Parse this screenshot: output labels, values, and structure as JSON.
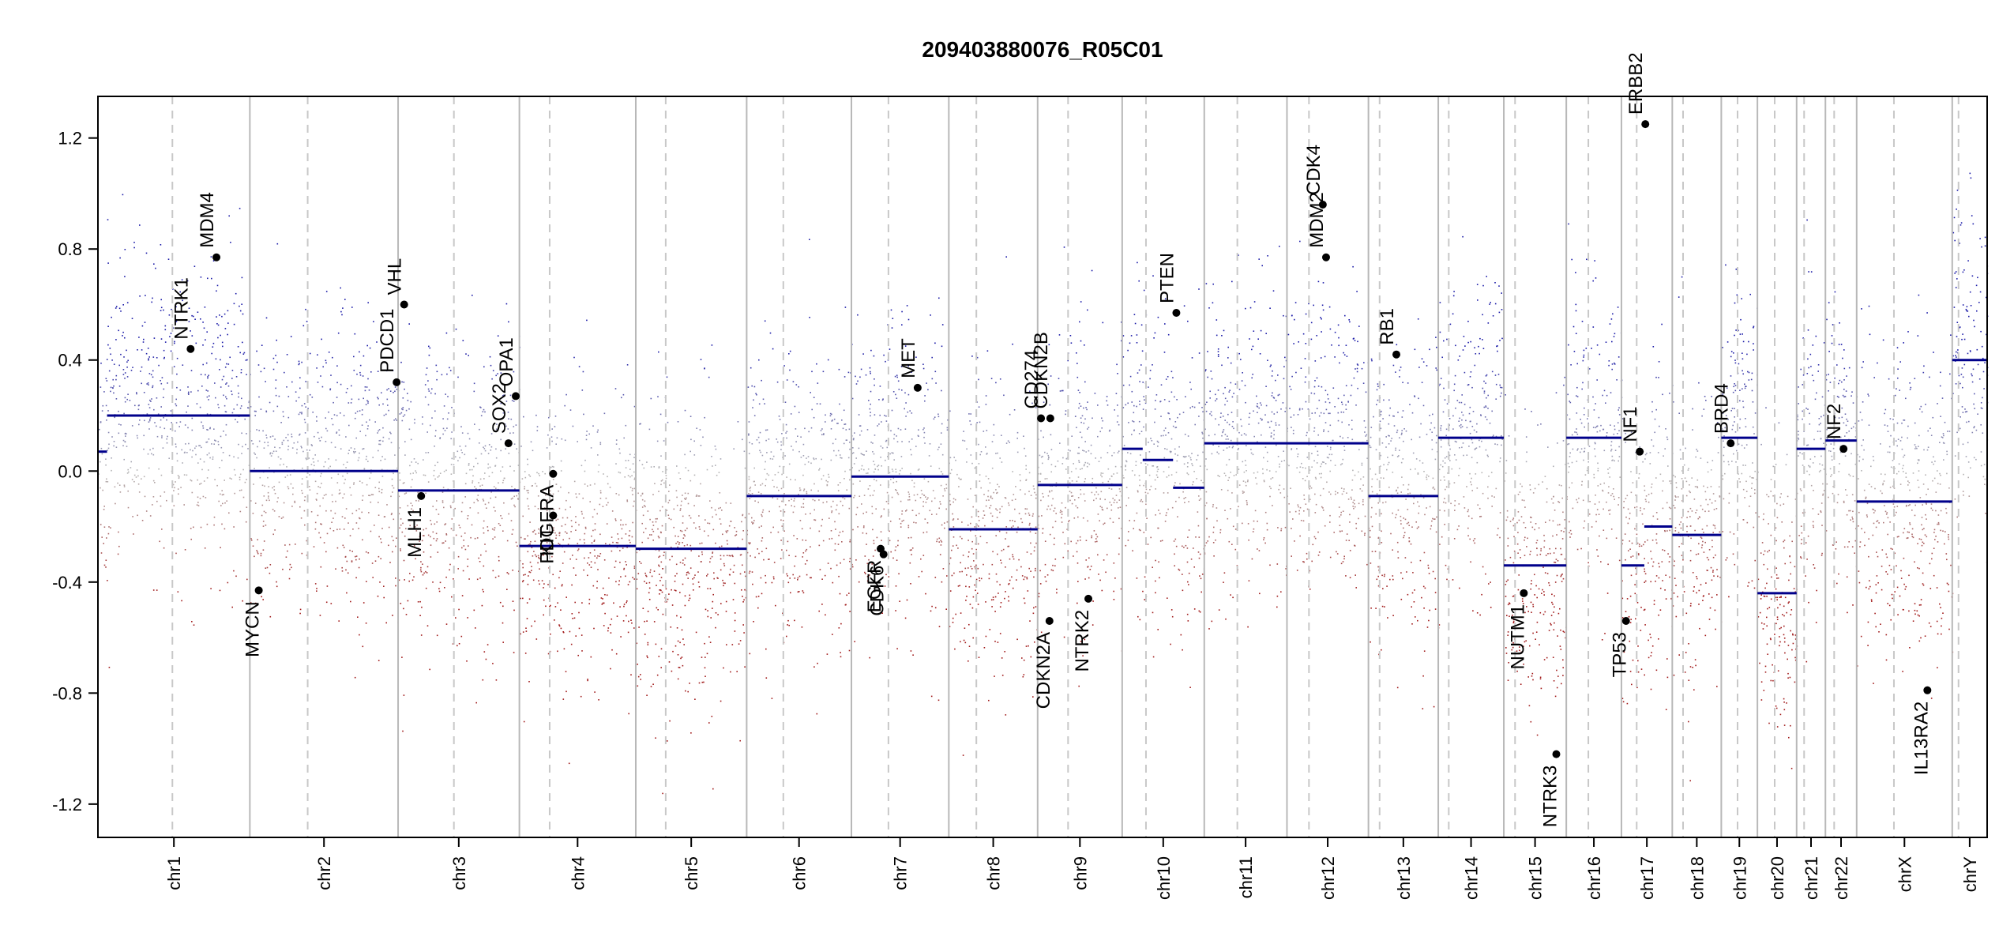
{
  "chart_data": {
    "type": "scatter",
    "title": "209403880076_R05C01",
    "xlabel": "",
    "ylabel": "",
    "ylim": [
      -1.32,
      1.35
    ],
    "y_ticks": [
      "-1.2",
      "-0.8",
      "-0.4",
      "0.0",
      "0.4",
      "0.8",
      "1.2"
    ],
    "colors": {
      "gain": "#1a1aa8",
      "loss": "#a11a1a",
      "neutral": "#b4b4b4",
      "segment": "#00008b",
      "chrom_line": "#b8b8b8",
      "centromere": "#c8c8c8"
    },
    "chromosomes": [
      {
        "name": "chr1",
        "len": 248,
        "cen": 0.49
      },
      {
        "name": "chr2",
        "len": 242,
        "cen": 0.39
      },
      {
        "name": "chr3",
        "len": 198,
        "cen": 0.46
      },
      {
        "name": "chr4",
        "len": 190,
        "cen": 0.26
      },
      {
        "name": "chr5",
        "len": 181,
        "cen": 0.27
      },
      {
        "name": "chr6",
        "len": 171,
        "cen": 0.35
      },
      {
        "name": "chr7",
        "len": 159,
        "cen": 0.38
      },
      {
        "name": "chr8",
        "len": 145,
        "cen": 0.31
      },
      {
        "name": "chr9",
        "len": 138,
        "cen": 0.36
      },
      {
        "name": "chr10",
        "len": 134,
        "cen": 0.29
      },
      {
        "name": "chr11",
        "len": 135,
        "cen": 0.4
      },
      {
        "name": "chr12",
        "len": 133,
        "cen": 0.27
      },
      {
        "name": "chr13",
        "len": 114,
        "cen": 0.16
      },
      {
        "name": "chr14",
        "len": 107,
        "cen": 0.16
      },
      {
        "name": "chr15",
        "len": 102,
        "cen": 0.18
      },
      {
        "name": "chr16",
        "len": 90,
        "cen": 0.4
      },
      {
        "name": "chr17",
        "len": 83,
        "cen": 0.3
      },
      {
        "name": "chr18",
        "len": 80,
        "cen": 0.22
      },
      {
        "name": "chr19",
        "len": 59,
        "cen": 0.45
      },
      {
        "name": "chr20",
        "len": 64,
        "cen": 0.44
      },
      {
        "name": "chr21",
        "len": 47,
        "cen": 0.26
      },
      {
        "name": "chr22",
        "len": 51,
        "cen": 0.28
      },
      {
        "name": "chrX",
        "len": 156,
        "cen": 0.39
      },
      {
        "name": "chrY",
        "len": 57,
        "cen": 0.18
      }
    ],
    "segments": [
      {
        "chr": "chr1",
        "start": 0,
        "end": 0.06,
        "value": 0.07
      },
      {
        "chr": "chr1",
        "start": 0.06,
        "end": 1,
        "value": 0.2
      },
      {
        "chr": "chr2",
        "start": 0,
        "end": 1,
        "value": 0.0
      },
      {
        "chr": "chr3",
        "start": 0,
        "end": 1,
        "value": -0.07
      },
      {
        "chr": "chr4",
        "start": 0,
        "end": 1,
        "value": -0.27
      },
      {
        "chr": "chr5",
        "start": 0,
        "end": 1,
        "value": -0.28
      },
      {
        "chr": "chr6",
        "start": 0,
        "end": 1,
        "value": -0.09
      },
      {
        "chr": "chr7",
        "start": 0,
        "end": 1,
        "value": -0.02
      },
      {
        "chr": "chr8",
        "start": 0,
        "end": 1,
        "value": -0.21
      },
      {
        "chr": "chr9",
        "start": 0,
        "end": 1,
        "value": -0.05
      },
      {
        "chr": "chr10",
        "start": 0,
        "end": 0.25,
        "value": 0.08
      },
      {
        "chr": "chr10",
        "start": 0.25,
        "end": 0.62,
        "value": 0.04
      },
      {
        "chr": "chr10",
        "start": 0.62,
        "end": 1,
        "value": -0.06
      },
      {
        "chr": "chr11",
        "start": 0,
        "end": 1,
        "value": 0.1
      },
      {
        "chr": "chr12",
        "start": 0,
        "end": 1,
        "value": 0.1
      },
      {
        "chr": "chr13",
        "start": 0,
        "end": 1,
        "value": -0.09
      },
      {
        "chr": "chr14",
        "start": 0,
        "end": 1,
        "value": 0.12
      },
      {
        "chr": "chr15",
        "start": 0,
        "end": 1,
        "value": -0.34
      },
      {
        "chr": "chr16",
        "start": 0,
        "end": 1,
        "value": 0.12
      },
      {
        "chr": "chr17",
        "start": 0,
        "end": 0.45,
        "value": -0.34
      },
      {
        "chr": "chr17",
        "start": 0.45,
        "end": 1,
        "value": -0.2
      },
      {
        "chr": "chr18",
        "start": 0,
        "end": 1,
        "value": -0.23
      },
      {
        "chr": "chr19",
        "start": 0,
        "end": 1,
        "value": 0.12
      },
      {
        "chr": "chr20",
        "start": 0,
        "end": 1,
        "value": -0.44
      },
      {
        "chr": "chr21",
        "start": 0,
        "end": 1,
        "value": 0.08
      },
      {
        "chr": "chr22",
        "start": 0,
        "end": 1,
        "value": 0.11
      },
      {
        "chr": "chrX",
        "start": 0,
        "end": 1,
        "value": -0.11
      },
      {
        "chr": "chrY",
        "start": 0,
        "end": 1,
        "value": 0.4
      }
    ],
    "genes": [
      {
        "name": "NTRK1",
        "chr": "chr1",
        "pos": 0.61,
        "value": 0.44
      },
      {
        "name": "MDM4",
        "chr": "chr1",
        "pos": 0.78,
        "value": 0.77
      },
      {
        "name": "MYCN",
        "chr": "chr2",
        "pos": 0.06,
        "value": -0.43
      },
      {
        "name": "PDCD1",
        "chr": "chr2",
        "pos": 0.99,
        "value": 0.32
      },
      {
        "name": "VHL",
        "chr": "chr3",
        "pos": 0.05,
        "value": 0.6
      },
      {
        "name": "MLH1",
        "chr": "chr3",
        "pos": 0.19,
        "value": -0.09
      },
      {
        "name": "SOX2",
        "chr": "chr3",
        "pos": 0.91,
        "value": 0.1
      },
      {
        "name": "OPA1",
        "chr": "chr3",
        "pos": 0.97,
        "value": 0.27
      },
      {
        "name": "PDGFRA",
        "chr": "chr4",
        "pos": 0.29,
        "value": -0.01
      },
      {
        "name": "KIT",
        "chr": "chr4",
        "pos": 0.29,
        "value": -0.16
      },
      {
        "name": "EGFR",
        "chr": "chr7",
        "pos": 0.3,
        "value": -0.28
      },
      {
        "name": "CDK6",
        "chr": "chr7",
        "pos": 0.33,
        "value": -0.3
      },
      {
        "name": "MET",
        "chr": "chr7",
        "pos": 0.68,
        "value": 0.3
      },
      {
        "name": "CD274",
        "chr": "chr9",
        "pos": 0.04,
        "value": 0.19
      },
      {
        "name": "CDKN2A",
        "chr": "chr9",
        "pos": 0.14,
        "value": -0.54
      },
      {
        "name": "CDKN2B",
        "chr": "chr9",
        "pos": 0.15,
        "value": 0.19
      },
      {
        "name": "NTRK2",
        "chr": "chr9",
        "pos": 0.6,
        "value": -0.46
      },
      {
        "name": "PTEN",
        "chr": "chr10",
        "pos": 0.66,
        "value": 0.57
      },
      {
        "name": "CDK4",
        "chr": "chr12",
        "pos": 0.44,
        "value": 0.96
      },
      {
        "name": "MDM2",
        "chr": "chr12",
        "pos": 0.48,
        "value": 0.77
      },
      {
        "name": "RB1",
        "chr": "chr13",
        "pos": 0.4,
        "value": 0.42
      },
      {
        "name": "NUTM1",
        "chr": "chr15",
        "pos": 0.32,
        "value": -0.44
      },
      {
        "name": "NTRK3",
        "chr": "chr15",
        "pos": 0.84,
        "value": -1.02
      },
      {
        "name": "TP53",
        "chr": "chr17",
        "pos": 0.09,
        "value": -0.54
      },
      {
        "name": "NF1",
        "chr": "chr17",
        "pos": 0.36,
        "value": 0.07
      },
      {
        "name": "ERBB2",
        "chr": "chr17",
        "pos": 0.47,
        "value": 1.25
      },
      {
        "name": "BRD4",
        "chr": "chr19",
        "pos": 0.26,
        "value": 0.1
      },
      {
        "name": "NF2",
        "chr": "chr22",
        "pos": 0.58,
        "value": 0.08
      },
      {
        "name": "IL13RA2",
        "chr": "chrX",
        "pos": 0.74,
        "value": -0.79
      }
    ]
  }
}
